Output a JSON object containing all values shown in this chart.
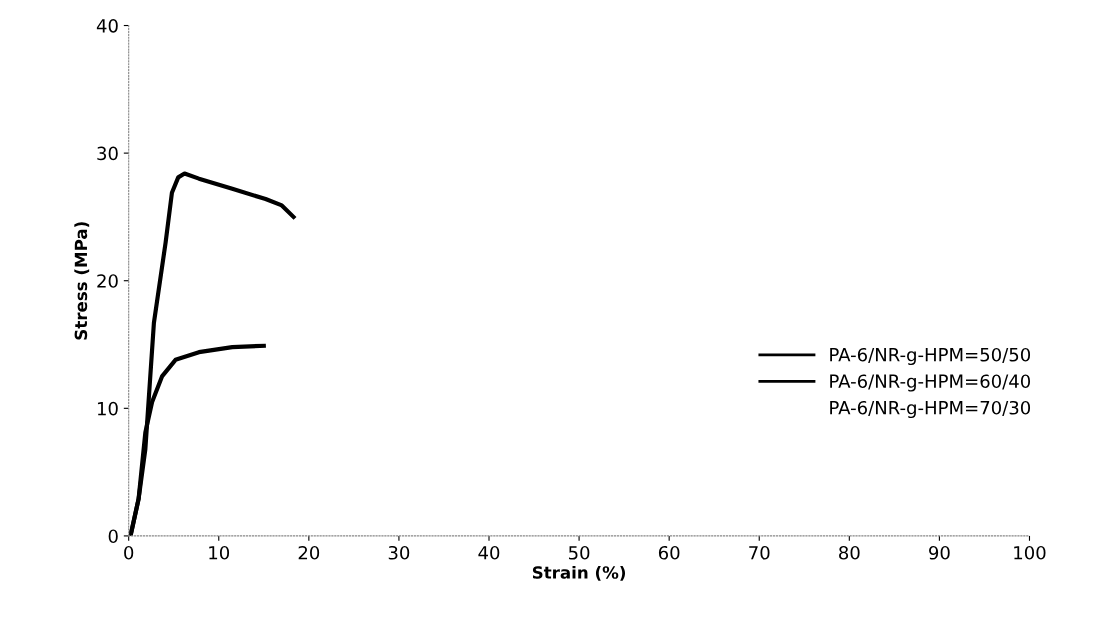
{
  "chart_data": {
    "type": "line",
    "xlabel": "Strain (%)",
    "ylabel": "Stress (MPa)",
    "xlim": [
      0,
      100
    ],
    "xticks": [
      0,
      10,
      20,
      30,
      40,
      50,
      60,
      70,
      80,
      90,
      100
    ],
    "ylim": [
      0,
      40
    ],
    "yticks": [
      0,
      10,
      20,
      30,
      40
    ],
    "grid": false,
    "legend": "right",
    "marker": "none",
    "line_style": "solid",
    "series": [
      {
        "name": "PA-6/NR-g-HPM=50/50",
        "color": "#000000",
        "x": [
          0.2,
          1.1,
          1.85,
          2.8,
          4.1,
          4.8,
          5.5,
          6.2,
          7.8,
          11.5,
          15.2,
          17,
          18.3
        ],
        "values": [
          0,
          2.9,
          6.8,
          16.7,
          23,
          26.9,
          28.1,
          28.4,
          28,
          27.2,
          26.4,
          25.9,
          25
        ]
      },
      {
        "name": "PA-6/NR-g-HPM=60/40",
        "color": "#000000",
        "x": [
          0.2,
          1.1,
          1.85,
          2.6,
          3.7,
          5.2,
          7.8,
          11.5,
          15
        ],
        "values": [
          0,
          2.9,
          8.1,
          10.5,
          12.5,
          13.8,
          14.4,
          14.8,
          14.9
        ]
      },
      {
        "name": "PA-6/NR-g-HPM=70/30"
      }
    ]
  }
}
